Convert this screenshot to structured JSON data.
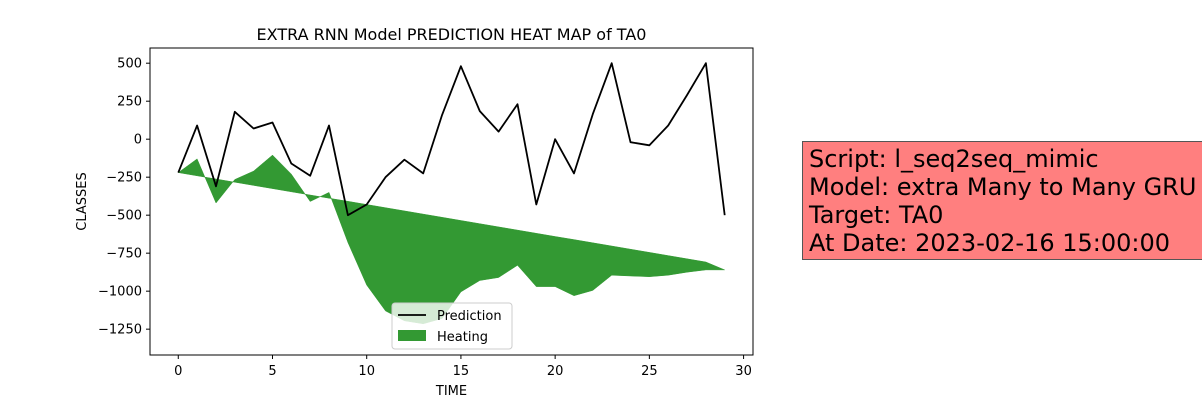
{
  "chart_data": {
    "type": "line",
    "title": "EXTRA RNN Model PREDICTION HEAT MAP of TA0",
    "xlabel": "TIME",
    "ylabel": "CLASSES",
    "xlim": [
      -1.5,
      30.5
    ],
    "ylim": [
      -1420,
      600
    ],
    "xticks": [
      0,
      5,
      10,
      15,
      20,
      25,
      30
    ],
    "yticks": [
      500,
      250,
      0,
      -250,
      -500,
      -750,
      -1000,
      -1250
    ],
    "x": [
      0,
      1,
      2,
      3,
      4,
      5,
      6,
      7,
      8,
      9,
      10,
      11,
      12,
      13,
      14,
      15,
      16,
      17,
      18,
      19,
      20,
      21,
      22,
      23,
      24,
      25,
      26,
      27,
      28,
      29
    ],
    "series": [
      {
        "name": "Prediction",
        "color": "#000000",
        "values": [
          -220,
          90,
          -310,
          180,
          70,
          110,
          -160,
          -240,
          90,
          -500,
          -430,
          -250,
          -135,
          -225,
          160,
          480,
          185,
          50,
          230,
          -430,
          0,
          -225,
          165,
          500,
          -20,
          -40,
          90,
          290,
          500,
          -500
        ]
      }
    ],
    "fill": {
      "name": "Heating",
      "color": "#339933",
      "upper": [
        -220,
        -130,
        -420,
        -265,
        -210,
        -105,
        -230,
        -410,
        -350,
        -680,
        -960,
        -1130,
        -1195,
        -1215,
        -1180,
        -1005,
        -930,
        -910,
        -830,
        -970,
        -970,
        -1030,
        -995,
        -895,
        -900,
        -905,
        -895,
        -875,
        -860,
        -860
      ],
      "baseline": [
        -220,
        -241,
        -262,
        -283,
        -304,
        -325,
        -346,
        -367,
        -388,
        -409,
        -430,
        -451,
        -472,
        -493,
        -514,
        -535,
        -556,
        -577,
        -598,
        -619,
        -640,
        -661,
        -682,
        -703,
        -724,
        -745,
        -766,
        -787,
        -808,
        -860
      ]
    },
    "legend": {
      "placement": "lower-center",
      "entries": [
        "Prediction",
        "Heating"
      ]
    },
    "grid": false
  },
  "infobox": {
    "script_line": "Script: l_seq2seq_mimic",
    "model_line": "Model: extra Many to Many GRU",
    "target_line": "Target: TA0",
    "date_line": "At Date: 2023-02-16 15:00:00",
    "background": "#ff7f7f"
  }
}
